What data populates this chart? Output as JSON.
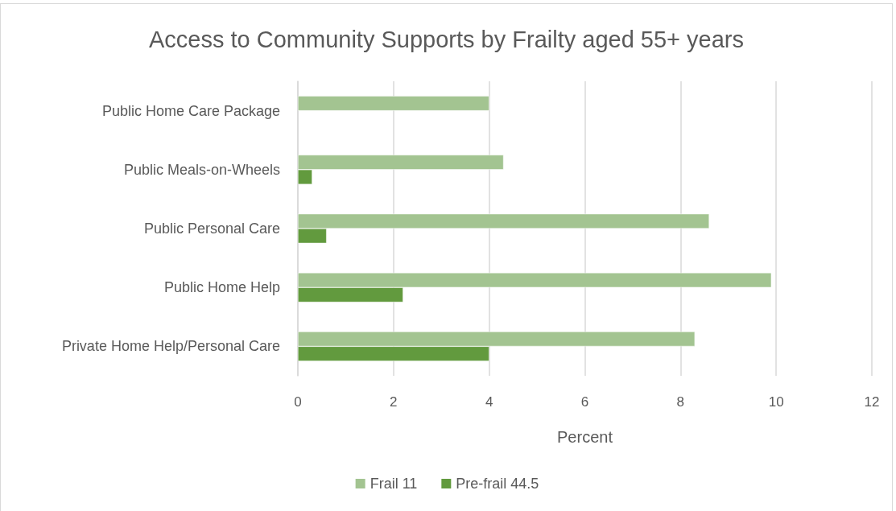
{
  "chart_data": {
    "type": "bar",
    "orientation": "horizontal",
    "title": "Access to Community Supports by Frailty aged 55+ years",
    "xlabel": "Percent",
    "categories": [
      "Public Home Care Package",
      "Public Meals-on-Wheels",
      "Public Personal Care",
      "Public Home Help",
      "Private Home Help/Personal Care"
    ],
    "series": [
      {
        "name": "Frail 11",
        "color": "#a3c491",
        "values": [
          4.0,
          4.3,
          8.6,
          9.9,
          8.3
        ]
      },
      {
        "name": "Pre-frail 44.5",
        "color": "#629a3e",
        "values": [
          null,
          0.3,
          0.6,
          2.2,
          4.0
        ]
      }
    ],
    "xlim": [
      0,
      12
    ],
    "xticks": [
      0,
      2,
      4,
      6,
      8,
      10,
      12
    ],
    "grid": "x",
    "legend": "bottom"
  }
}
